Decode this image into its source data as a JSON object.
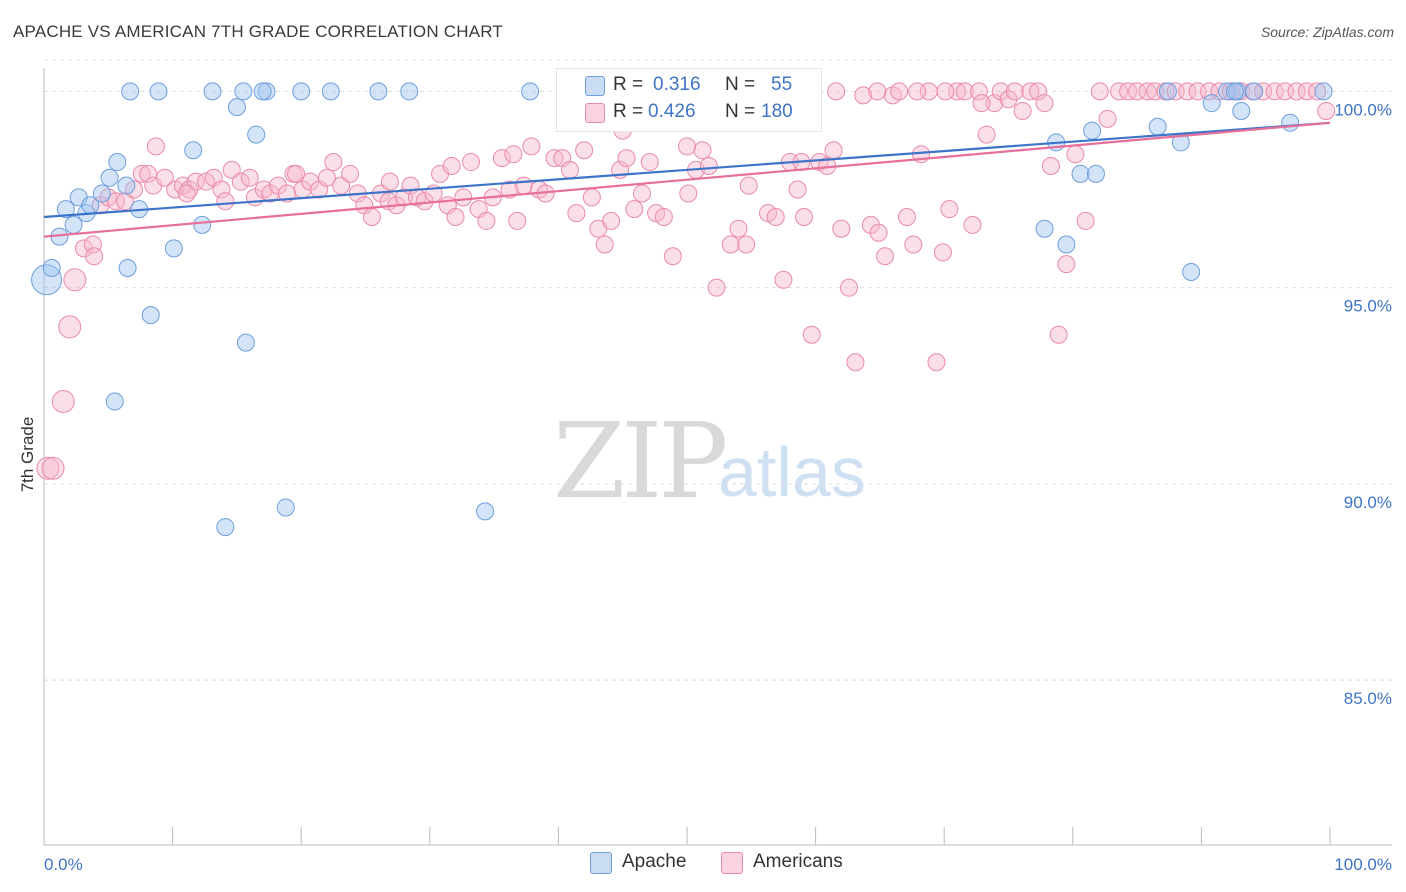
{
  "header": {
    "title": "APACHE VS AMERICAN 7TH GRADE CORRELATION CHART",
    "source": "Source: ZipAtlas.com"
  },
  "watermark": {
    "part1": "ZIP",
    "part2": "atlas"
  },
  "stats": {
    "rows": [
      {
        "r_label": "R =",
        "r_value": "0.316",
        "n_label": "N =",
        "n_value": "55",
        "color": "#9dc3ef"
      },
      {
        "r_label": "R =",
        "r_value": "0.426",
        "n_label": "N =",
        "n_value": "180",
        "color": "#f7b8cb"
      }
    ]
  },
  "legend": {
    "items": [
      {
        "label": "Apache",
        "color": "#9dc3ef"
      },
      {
        "label": "Americans",
        "color": "#f7b8cb"
      }
    ]
  },
  "chart_data": {
    "type": "scatter",
    "title": "APACHE VS AMERICAN 7TH GRADE CORRELATION CHART",
    "xlabel": "",
    "ylabel": "7th Grade",
    "xlim": [
      0,
      100
    ],
    "ylim": [
      80.8,
      100.8
    ],
    "x_tick_labels": [
      "0.0%",
      "100.0%"
    ],
    "y_ticks": [
      85,
      90,
      95,
      100
    ],
    "y_tick_labels": [
      "85.0%",
      "90.0%",
      "95.0%",
      "100.0%"
    ],
    "grid": true,
    "legend_position": "bottom-center",
    "colors": {
      "apache": "#3d74c9",
      "americans": "#e6709a"
    },
    "series": [
      {
        "name": "Apache",
        "trend": {
          "x": [
            0,
            100
          ],
          "y": [
            96.8,
            99.2
          ]
        },
        "points": [
          [
            0.2,
            95.2
          ],
          [
            0.6,
            95.5
          ],
          [
            1.2,
            96.3
          ],
          [
            1.7,
            97.0
          ],
          [
            2.3,
            96.6
          ],
          [
            2.7,
            97.3
          ],
          [
            3.3,
            96.9
          ],
          [
            3.6,
            97.1
          ],
          [
            4.5,
            97.4
          ],
          [
            5.1,
            97.8
          ],
          [
            5.7,
            98.2
          ],
          [
            6.4,
            97.6
          ],
          [
            7.4,
            97.0
          ],
          [
            6.5,
            95.5
          ],
          [
            8.3,
            94.3
          ],
          [
            5.5,
            92.1
          ],
          [
            10.1,
            96.0
          ],
          [
            11.6,
            98.5
          ],
          [
            12.3,
            96.6
          ],
          [
            14.1,
            88.9
          ],
          [
            15.0,
            99.6
          ],
          [
            15.7,
            93.6
          ],
          [
            16.5,
            98.9
          ],
          [
            17.3,
            100.0
          ],
          [
            18.8,
            89.4
          ],
          [
            6.7,
            100.0
          ],
          [
            8.9,
            100.0
          ],
          [
            13.1,
            100.0
          ],
          [
            15.5,
            100.0
          ],
          [
            17.0,
            100.0
          ],
          [
            20.0,
            100.0
          ],
          [
            22.3,
            100.0
          ],
          [
            26.0,
            100.0
          ],
          [
            28.4,
            100.0
          ],
          [
            34.3,
            89.3
          ],
          [
            37.8,
            100.0
          ],
          [
            56.7,
            100.0
          ],
          [
            77.8,
            96.5
          ],
          [
            78.7,
            98.7
          ],
          [
            79.5,
            96.1
          ],
          [
            81.5,
            99.0
          ],
          [
            80.6,
            97.9
          ],
          [
            81.8,
            97.9
          ],
          [
            86.6,
            99.1
          ],
          [
            87.4,
            100.0
          ],
          [
            88.4,
            98.7
          ],
          [
            89.2,
            95.4
          ],
          [
            90.8,
            99.7
          ],
          [
            92.0,
            100.0
          ],
          [
            92.8,
            100.0
          ],
          [
            93.1,
            99.5
          ],
          [
            94.1,
            100.0
          ],
          [
            96.9,
            99.2
          ],
          [
            99.5,
            100.0
          ],
          [
            92.6,
            100.0
          ]
        ]
      },
      {
        "name": "Americans",
        "trend": {
          "x": [
            0,
            100
          ],
          "y": [
            96.3,
            99.2
          ]
        },
        "points": [
          [
            0.3,
            90.4
          ],
          [
            0.7,
            90.4
          ],
          [
            1.5,
            92.1
          ],
          [
            2.0,
            94.0
          ],
          [
            2.4,
            95.2
          ],
          [
            3.1,
            96.0
          ],
          [
            3.8,
            96.1
          ],
          [
            3.9,
            95.8
          ],
          [
            4.4,
            97.1
          ],
          [
            5.0,
            97.3
          ],
          [
            5.6,
            97.2
          ],
          [
            6.3,
            97.2
          ],
          [
            7.0,
            97.5
          ],
          [
            7.6,
            97.9
          ],
          [
            8.1,
            97.9
          ],
          [
            8.5,
            97.6
          ],
          [
            9.4,
            97.8
          ],
          [
            10.2,
            97.5
          ],
          [
            10.8,
            97.6
          ],
          [
            11.3,
            97.5
          ],
          [
            11.8,
            97.7
          ],
          [
            12.6,
            97.7
          ],
          [
            13.2,
            97.8
          ],
          [
            13.8,
            97.5
          ],
          [
            14.6,
            98.0
          ],
          [
            15.3,
            97.7
          ],
          [
            16.0,
            97.8
          ],
          [
            16.4,
            97.3
          ],
          [
            17.1,
            97.5
          ],
          [
            17.6,
            97.4
          ],
          [
            18.2,
            97.6
          ],
          [
            18.9,
            97.4
          ],
          [
            19.4,
            97.9
          ],
          [
            20.1,
            97.5
          ],
          [
            20.7,
            97.7
          ],
          [
            21.4,
            97.5
          ],
          [
            22.0,
            97.8
          ],
          [
            22.5,
            98.2
          ],
          [
            23.1,
            97.6
          ],
          [
            23.8,
            97.9
          ],
          [
            24.4,
            97.4
          ],
          [
            24.9,
            97.1
          ],
          [
            25.5,
            96.8
          ],
          [
            26.2,
            97.4
          ],
          [
            26.8,
            97.2
          ],
          [
            27.4,
            97.1
          ],
          [
            28.0,
            97.3
          ],
          [
            28.5,
            97.6
          ],
          [
            29.0,
            97.3
          ],
          [
            29.6,
            97.2
          ],
          [
            30.3,
            97.4
          ],
          [
            30.8,
            97.9
          ],
          [
            31.4,
            97.1
          ],
          [
            32.0,
            96.8
          ],
          [
            32.6,
            97.3
          ],
          [
            33.2,
            98.2
          ],
          [
            33.8,
            97.0
          ],
          [
            34.4,
            96.7
          ],
          [
            34.9,
            97.3
          ],
          [
            35.6,
            98.3
          ],
          [
            36.2,
            97.5
          ],
          [
            36.8,
            96.7
          ],
          [
            37.3,
            97.6
          ],
          [
            37.9,
            98.6
          ],
          [
            38.5,
            97.5
          ],
          [
            39.0,
            97.4
          ],
          [
            39.7,
            98.3
          ],
          [
            40.3,
            98.3
          ],
          [
            40.8,
            99.9
          ],
          [
            41.4,
            96.9
          ],
          [
            42.0,
            98.5
          ],
          [
            42.6,
            97.3
          ],
          [
            43.1,
            96.5
          ],
          [
            43.6,
            96.1
          ],
          [
            44.1,
            96.7
          ],
          [
            44.8,
            98.0
          ],
          [
            45.3,
            98.3
          ],
          [
            45.9,
            97.0
          ],
          [
            46.5,
            97.4
          ],
          [
            47.1,
            98.2
          ],
          [
            47.6,
            96.9
          ],
          [
            48.2,
            96.8
          ],
          [
            48.9,
            95.8
          ],
          [
            49.5,
            99.4
          ],
          [
            50.1,
            97.4
          ],
          [
            50.7,
            98.0
          ],
          [
            51.2,
            98.5
          ],
          [
            51.7,
            98.1
          ],
          [
            52.3,
            95.0
          ],
          [
            52.9,
            99.5
          ],
          [
            53.4,
            96.1
          ],
          [
            54.0,
            96.5
          ],
          [
            54.6,
            96.1
          ],
          [
            55.2,
            99.4
          ],
          [
            55.8,
            99.6
          ],
          [
            56.3,
            96.9
          ],
          [
            56.9,
            96.8
          ],
          [
            57.5,
            95.2
          ],
          [
            58.0,
            98.2
          ],
          [
            58.6,
            97.5
          ],
          [
            59.1,
            96.8
          ],
          [
            59.7,
            93.8
          ],
          [
            60.3,
            98.2
          ],
          [
            60.9,
            98.1
          ],
          [
            61.4,
            98.5
          ],
          [
            62.0,
            96.5
          ],
          [
            62.6,
            95.0
          ],
          [
            63.1,
            93.1
          ],
          [
            63.7,
            99.9
          ],
          [
            64.3,
            96.6
          ],
          [
            64.9,
            96.4
          ],
          [
            65.4,
            95.8
          ],
          [
            66.0,
            99.9
          ],
          [
            66.5,
            100.0
          ],
          [
            67.1,
            96.8
          ],
          [
            67.6,
            96.1
          ],
          [
            68.2,
            98.4
          ],
          [
            68.8,
            100.0
          ],
          [
            69.4,
            93.1
          ],
          [
            69.9,
            95.9
          ],
          [
            70.4,
            97.0
          ],
          [
            71.0,
            100.0
          ],
          [
            71.6,
            100.0
          ],
          [
            72.2,
            96.6
          ],
          [
            72.7,
            100.0
          ],
          [
            73.3,
            98.9
          ],
          [
            73.9,
            99.7
          ],
          [
            74.4,
            100.0
          ],
          [
            75.0,
            99.8
          ],
          [
            75.5,
            100.0
          ],
          [
            76.1,
            99.5
          ],
          [
            76.7,
            100.0
          ],
          [
            77.3,
            100.0
          ],
          [
            77.8,
            99.7
          ],
          [
            78.3,
            98.1
          ],
          [
            78.9,
            93.8
          ],
          [
            79.5,
            95.6
          ],
          [
            80.2,
            98.4
          ],
          [
            81.0,
            96.7
          ],
          [
            82.1,
            100.0
          ],
          [
            82.7,
            99.3
          ],
          [
            83.6,
            100.0
          ],
          [
            84.3,
            100.0
          ],
          [
            85.0,
            100.0
          ],
          [
            85.8,
            100.0
          ],
          [
            86.4,
            100.0
          ],
          [
            87.2,
            100.0
          ],
          [
            88.0,
            100.0
          ],
          [
            88.9,
            100.0
          ],
          [
            89.7,
            100.0
          ],
          [
            90.6,
            100.0
          ],
          [
            91.4,
            100.0
          ],
          [
            92.3,
            100.0
          ],
          [
            93.1,
            100.0
          ],
          [
            94.0,
            100.0
          ],
          [
            94.8,
            100.0
          ],
          [
            95.7,
            100.0
          ],
          [
            96.5,
            100.0
          ],
          [
            97.4,
            100.0
          ],
          [
            98.2,
            100.0
          ],
          [
            99.0,
            100.0
          ],
          [
            99.7,
            99.5
          ],
          [
            58.3,
            100.0
          ],
          [
            61.6,
            100.0
          ],
          [
            64.8,
            100.0
          ],
          [
            67.9,
            100.0
          ],
          [
            70.1,
            100.0
          ],
          [
            72.9,
            99.7
          ],
          [
            8.7,
            98.6
          ],
          [
            11.1,
            97.4
          ],
          [
            14.1,
            97.2
          ],
          [
            19.6,
            97.9
          ],
          [
            26.9,
            97.7
          ],
          [
            31.7,
            98.1
          ],
          [
            36.5,
            98.4
          ],
          [
            40.9,
            98.0
          ],
          [
            45.0,
            99.0
          ],
          [
            50.0,
            98.6
          ],
          [
            54.8,
            97.6
          ],
          [
            58.9,
            98.2
          ]
        ]
      }
    ]
  }
}
